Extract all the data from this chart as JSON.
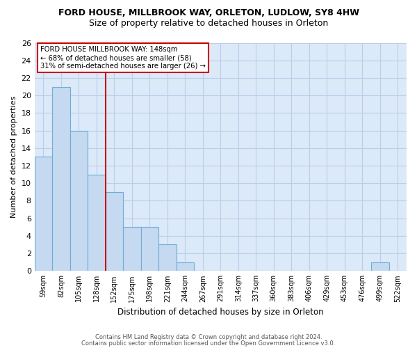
{
  "title": "FORD HOUSE, MILLBROOK WAY, ORLETON, LUDLOW, SY8 4HW",
  "subtitle": "Size of property relative to detached houses in Orleton",
  "xlabel": "Distribution of detached houses by size in Orleton",
  "ylabel": "Number of detached properties",
  "categories": [
    "59sqm",
    "82sqm",
    "105sqm",
    "128sqm",
    "152sqm",
    "175sqm",
    "198sqm",
    "221sqm",
    "244sqm",
    "267sqm",
    "291sqm",
    "314sqm",
    "337sqm",
    "360sqm",
    "383sqm",
    "406sqm",
    "429sqm",
    "453sqm",
    "476sqm",
    "499sqm",
    "522sqm"
  ],
  "values": [
    13,
    21,
    16,
    11,
    9,
    5,
    5,
    3,
    1,
    0,
    0,
    0,
    0,
    0,
    0,
    0,
    0,
    0,
    0,
    1,
    0
  ],
  "bar_color": "#c5d9f0",
  "bar_edge_color": "#6baed6",
  "vline_x": 3.5,
  "vline_color": "#cc0000",
  "annotation_title": "FORD HOUSE MILLBROOK WAY: 148sqm",
  "annotation_line1": "← 68% of detached houses are smaller (58)",
  "annotation_line2": "31% of semi-detached houses are larger (26) →",
  "annotation_box_color": "#ffffff",
  "annotation_box_edge": "#cc0000",
  "ylim": [
    0,
    26
  ],
  "yticks": [
    0,
    2,
    4,
    6,
    8,
    10,
    12,
    14,
    16,
    18,
    20,
    22,
    24,
    26
  ],
  "background_color": "#dce9f8",
  "grid_color": "#b8cfe8",
  "footer1": "Contains HM Land Registry data © Crown copyright and database right 2024.",
  "footer2": "Contains public sector information licensed under the Open Government Licence v3.0.",
  "title_fontsize": 9,
  "subtitle_fontsize": 9
}
